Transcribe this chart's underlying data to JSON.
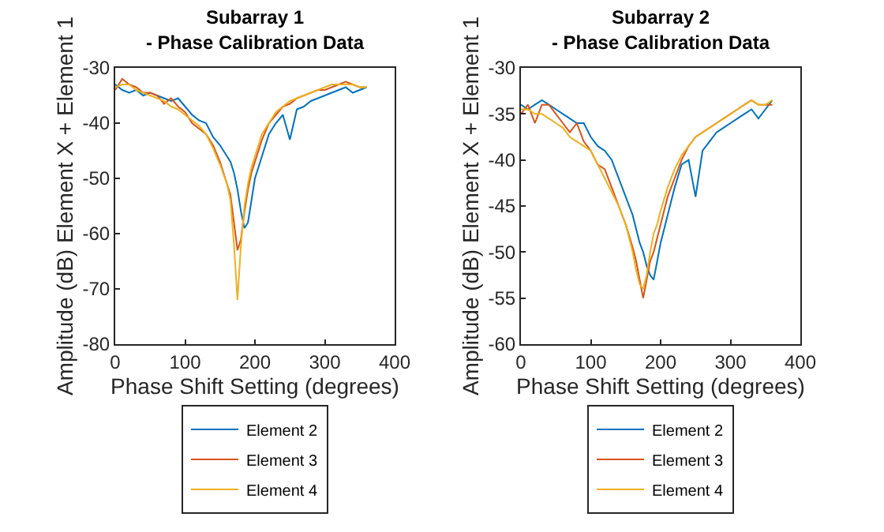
{
  "chart_data": [
    {
      "type": "line",
      "title": "Subarray 1\n- Phase Calibration Data",
      "xlabel": "Phase Shift Setting (degrees)",
      "ylabel": "Amplitude (dB) Element X + Element 1",
      "xlim": [
        0,
        400
      ],
      "xticks": [
        0,
        100,
        200,
        300,
        400
      ],
      "ylim": [
        -80,
        -30
      ],
      "yticks": [
        -80,
        -70,
        -60,
        -50,
        -40,
        -30
      ],
      "grid": false,
      "legend": "bottom",
      "marker": "none",
      "line_style": "solid",
      "x": [
        0,
        10,
        20,
        30,
        40,
        50,
        60,
        70,
        80,
        90,
        100,
        110,
        120,
        130,
        140,
        150,
        160,
        165,
        170,
        175,
        180,
        185,
        190,
        195,
        200,
        210,
        220,
        230,
        240,
        250,
        260,
        270,
        280,
        290,
        300,
        310,
        320,
        330,
        340,
        350,
        360
      ],
      "series": [
        {
          "name": "Element 2",
          "color": "#0072bd",
          "values": [
            -33,
            -34,
            -34.5,
            -34,
            -35,
            -34.5,
            -35,
            -35.5,
            -36,
            -35.5,
            -37,
            -38.5,
            -39.5,
            -40,
            -42.5,
            -44,
            -46,
            -47,
            -49,
            -52,
            -56,
            -59,
            -58,
            -54,
            -50,
            -46,
            -42,
            -40,
            -38.5,
            -43,
            -37.5,
            -37,
            -36,
            -35.5,
            -35,
            -34.5,
            -34,
            -33.5,
            -34.5,
            -34,
            -33.5
          ]
        },
        {
          "name": "Element 3",
          "color": "#d95319",
          "values": [
            -34,
            -32,
            -33,
            -33.5,
            -34.5,
            -34.5,
            -35,
            -36.5,
            -35.5,
            -37,
            -38,
            -40,
            -41,
            -42,
            -44,
            -47,
            -51,
            -53,
            -58,
            -63,
            -61,
            -56,
            -52,
            -49,
            -47,
            -43,
            -40,
            -38.5,
            -37,
            -36.5,
            -35.5,
            -35,
            -34.5,
            -34,
            -34,
            -33.5,
            -33,
            -32.5,
            -33,
            -33.5,
            -33.5
          ]
        },
        {
          "name": "Element 4",
          "color": "#edb120",
          "values": [
            -33.5,
            -33,
            -33,
            -34,
            -34.5,
            -35,
            -35.5,
            -36,
            -37,
            -37.5,
            -38.5,
            -39.5,
            -40.5,
            -42,
            -44.5,
            -47.5,
            -51,
            -54,
            -62,
            -72,
            -62,
            -55,
            -51,
            -48,
            -46,
            -42,
            -40,
            -38,
            -37,
            -36,
            -35.5,
            -35,
            -34.5,
            -34,
            -33.5,
            -33,
            -33,
            -33,
            -33,
            -33.5,
            -33.5
          ]
        }
      ]
    },
    {
      "type": "line",
      "title": "Subarray 2\n- Phase Calibration Data",
      "xlabel": "Phase Shift Setting (degrees)",
      "ylabel": "Amplitude (dB) Element X + Element 1",
      "xlim": [
        0,
        400
      ],
      "xticks": [
        0,
        100,
        200,
        300,
        400
      ],
      "ylim": [
        -60,
        -30
      ],
      "yticks": [
        -60,
        -55,
        -50,
        -45,
        -40,
        -35,
        -30
      ],
      "grid": false,
      "legend": "bottom",
      "marker": "none",
      "line_style": "solid",
      "x": [
        0,
        10,
        20,
        30,
        40,
        50,
        60,
        70,
        80,
        90,
        100,
        110,
        120,
        130,
        140,
        150,
        160,
        165,
        170,
        175,
        180,
        185,
        190,
        195,
        200,
        210,
        220,
        230,
        240,
        250,
        260,
        270,
        280,
        290,
        300,
        310,
        320,
        330,
        340,
        350,
        360
      ],
      "series": [
        {
          "name": "Element 2",
          "color": "#0072bd",
          "values": [
            -34,
            -34.5,
            -34,
            -33.5,
            -34,
            -34.5,
            -35,
            -35.5,
            -36,
            -36,
            -37.5,
            -38.5,
            -39,
            -40,
            -42,
            -44,
            -46,
            -47.5,
            -49,
            -50,
            -51.5,
            -52.5,
            -53,
            -51,
            -49,
            -46,
            -43,
            -40.5,
            -40,
            -44,
            -39,
            -38,
            -37,
            -36.5,
            -36,
            -35.5,
            -35,
            -34.5,
            -35.5,
            -34.5,
            -33.5
          ]
        },
        {
          "name": "Element 3",
          "color": "#d95319",
          "values": [
            -35,
            -34,
            -36,
            -34,
            -34,
            -35,
            -36,
            -37,
            -36,
            -38,
            -39,
            -40.5,
            -41,
            -43,
            -45,
            -47,
            -49.5,
            -51,
            -53,
            -55,
            -53,
            -51,
            -50,
            -48.5,
            -47,
            -44,
            -42,
            -40,
            -38.5,
            -37.5,
            -37,
            -36.5,
            -36,
            -35.5,
            -35,
            -34.5,
            -34,
            -33.5,
            -34,
            -34,
            -34
          ]
        },
        {
          "name": "Element 4",
          "color": "#edb120",
          "values": [
            -34.5,
            -34.5,
            -35,
            -35,
            -35.5,
            -36,
            -36.5,
            -37.5,
            -38,
            -38.5,
            -39,
            -40.5,
            -42,
            -43.5,
            -45,
            -47,
            -50,
            -52,
            -53.5,
            -54,
            -52.5,
            -50,
            -48,
            -47,
            -45.5,
            -43,
            -41,
            -39.5,
            -38.5,
            -37.5,
            -37,
            -36.5,
            -36,
            -35.5,
            -35,
            -34.5,
            -34,
            -33.5,
            -34,
            -34,
            -33.5
          ]
        }
      ]
    }
  ]
}
